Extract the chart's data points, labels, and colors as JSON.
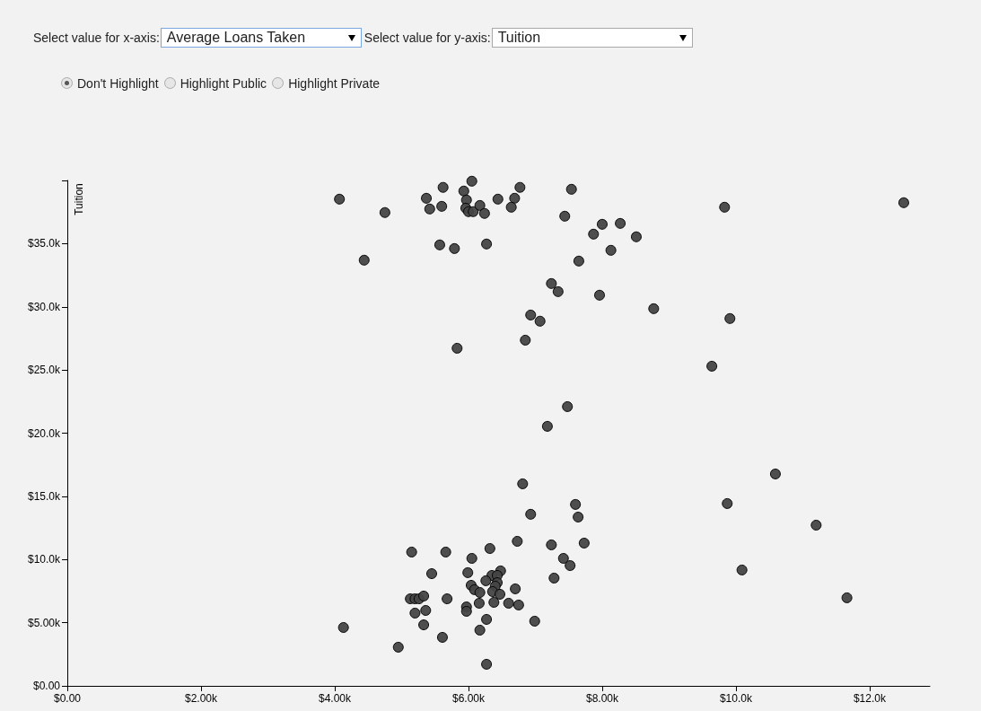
{
  "chart_data": {
    "type": "scatter",
    "ylabel": "Tuition",
    "annotations": [
      "Select value for x-axis:",
      "Average Loans Taken",
      "Select value for y-axis:",
      "Tuition",
      "Don't Highlight",
      "Highlight Public",
      "Highlight Private"
    ],
    "xlim": [
      0,
      12900
    ],
    "ylim": [
      0,
      40000
    ],
    "xticks": [
      {
        "value": 0,
        "label": "$0.00"
      },
      {
        "value": 2000,
        "label": "$2.00k"
      },
      {
        "value": 4000,
        "label": "$4.00k"
      },
      {
        "value": 6000,
        "label": "$6.00k"
      },
      {
        "value": 8000,
        "label": "$8.00k"
      },
      {
        "value": 10000,
        "label": "$10.0k"
      },
      {
        "value": 12000,
        "label": "$12.0k"
      }
    ],
    "yticks": [
      {
        "value": 0,
        "label": "$0.00"
      },
      {
        "value": 5000,
        "label": "$5.00k"
      },
      {
        "value": 10000,
        "label": "$10.0k"
      },
      {
        "value": 15000,
        "label": "$15.0k"
      },
      {
        "value": 20000,
        "label": "$20.0k"
      },
      {
        "value": 25000,
        "label": "$25.0k"
      },
      {
        "value": 30000,
        "label": "$30.0k"
      },
      {
        "value": 35000,
        "label": "$35.0k"
      },
      {
        "value": 40000,
        "label": null
      }
    ],
    "grid": false,
    "marker": "circle",
    "series": [
      {
        "color": "#444444",
        "x": [
          4070,
          4750,
          4440,
          5370,
          5620,
          5420,
          5600,
          5930,
          6050,
          5970,
          5960,
          6000,
          6070,
          6170,
          6240,
          6440,
          6690,
          6770,
          6640,
          5570,
          5790,
          6270,
          7540,
          7440,
          8000,
          8270,
          7870,
          8130,
          7650,
          7240,
          7340,
          7960,
          6930,
          7070,
          6850,
          5830,
          8510,
          9830,
          12510,
          8770,
          9910,
          9640,
          7480,
          7180,
          10590,
          9870,
          11200,
          10090,
          11660,
          6810,
          7600,
          7640,
          6930,
          6730,
          7240,
          7730,
          6320,
          5150,
          5660,
          6050,
          7420,
          7520,
          5450,
          5990,
          6480,
          6350,
          6430,
          6260,
          6430,
          7280,
          6040,
          6400,
          6090,
          6170,
          6360,
          6470,
          6700,
          5130,
          5200,
          5260,
          5330,
          5680,
          6160,
          6380,
          6600,
          6750,
          5970,
          5970,
          5360,
          5200,
          6270,
          6990,
          5330,
          4130,
          6170,
          5610,
          4950,
          6270
        ],
        "values": [
          38520,
          37460,
          33690,
          38590,
          39450,
          37740,
          37950,
          39160,
          39940,
          38450,
          37810,
          37530,
          37530,
          38020,
          37390,
          38520,
          38590,
          39450,
          37880,
          34900,
          34610,
          34970,
          39300,
          37170,
          36530,
          36600,
          35750,
          34470,
          33620,
          31840,
          31200,
          30920,
          29350,
          28860,
          27360,
          26720,
          35540,
          37880,
          38240,
          29850,
          29070,
          25300,
          22100,
          20540,
          16770,
          14430,
          12720,
          9170,
          6970,
          15990,
          14360,
          13360,
          13580,
          11440,
          11160,
          11300,
          10870,
          10590,
          10590,
          10090,
          10090,
          9520,
          8880,
          8960,
          9100,
          8740,
          8740,
          8320,
          8170,
          8530,
          7960,
          7890,
          7610,
          7390,
          7460,
          7250,
          7680,
          6890,
          6890,
          6890,
          7110,
          6890,
          6540,
          6610,
          6540,
          6400,
          6250,
          5900,
          5970,
          5760,
          5260,
          5120,
          4830,
          4620,
          4410,
          3840,
          3060,
          1710
        ]
      }
    ]
  }
}
